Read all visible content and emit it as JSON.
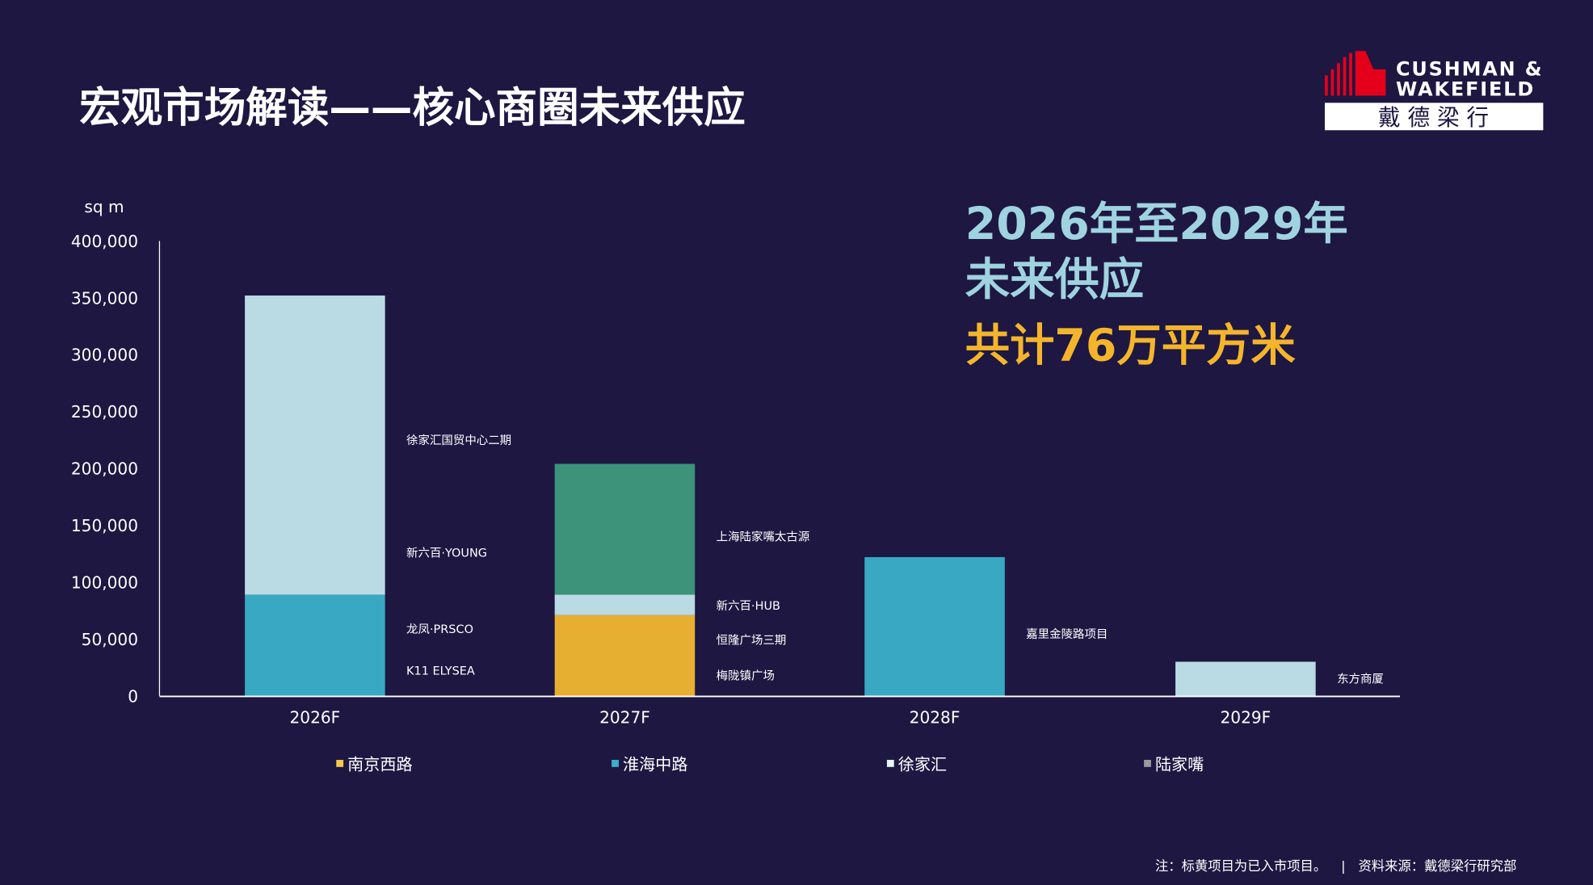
{
  "title": "宏观市场解读——核心商圈未来供应",
  "logo": {
    "line1": "CUSHMAN &",
    "line2": "WAKEFIELD",
    "cn": "戴 德 梁 行",
    "brand_color": "#e4001b"
  },
  "headline": {
    "line1": "2026年至2029年",
    "line2": "未来供应",
    "line3": "共计76万平方米",
    "color_main": "#9fd3e0",
    "color_total": "#f4b52c"
  },
  "footnote": {
    "note": "注：标黄项目为已入市项目。",
    "separator": "|",
    "source": "资料来源：戴德梁行研究部"
  },
  "chart_data": {
    "type": "bar",
    "stacked": true,
    "ylabel": "sq m",
    "ylim": [
      0,
      400000
    ],
    "yticks": [
      0,
      50000,
      100000,
      150000,
      200000,
      250000,
      300000,
      350000,
      400000
    ],
    "ytick_labels": [
      "0",
      "50,000",
      "100,000",
      "150,000",
      "200,000",
      "250,000",
      "300,000",
      "350,000",
      "400,000"
    ],
    "categories": [
      "2026F",
      "2027F",
      "2028F",
      "2029F"
    ],
    "series": [
      {
        "name": "南京西路",
        "color": "#f2b731",
        "legend_color": "#f2c94c",
        "values": [
          0,
          71000,
          0,
          0
        ]
      },
      {
        "name": "淮海中路",
        "color": "#3bb0c9",
        "legend_color": "#3bb0c9",
        "values": [
          89000,
          0,
          122000,
          0
        ]
      },
      {
        "name": "徐家汇",
        "color": "#c3e6ed",
        "legend_color": "#e8f4f6",
        "values": [
          263000,
          18000,
          0,
          30000
        ]
      },
      {
        "name": "陆家嘴",
        "color": "#3e9a7c",
        "legend_color": "#9a9aa0",
        "values": [
          0,
          115000,
          0,
          0
        ]
      }
    ],
    "annotations": [
      {
        "category": "2026F",
        "labels": [
          "徐家汇国贸中心二期",
          "新六百·YOUNG",
          "龙凤·PRSCO",
          "K11 ELYSEA"
        ]
      },
      {
        "category": "2027F",
        "labels": [
          "上海陆家嘴太古源",
          "新六百·HUB",
          "恒隆广场三期",
          "梅陇镇广场"
        ]
      },
      {
        "category": "2028F",
        "labels": [
          "嘉里金陵路项目"
        ]
      },
      {
        "category": "2029F",
        "labels": [
          "东方商厦"
        ]
      }
    ],
    "legend_position": "bottom",
    "grid": false
  }
}
